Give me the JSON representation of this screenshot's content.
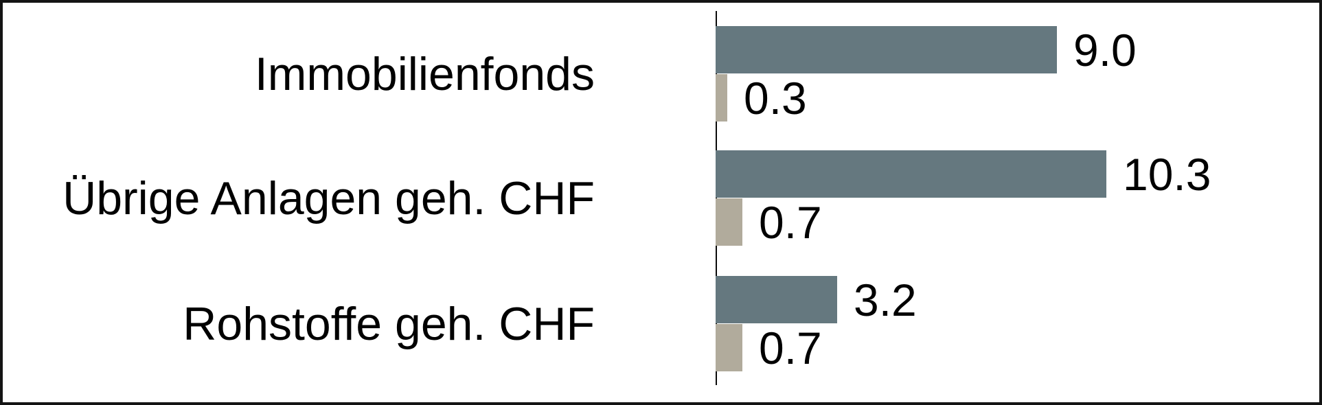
{
  "chart_data": {
    "type": "bar",
    "orientation": "horizontal",
    "title": "",
    "xlabel": "",
    "ylabel": "",
    "legend": "none",
    "grid": false,
    "axis_line": "left-vertical-black",
    "xlim": [
      0,
      16
    ],
    "value_labels_position": "right-of-bar-end",
    "categories": [
      "Immobilienfonds",
      "Übrige Anlagen geh. CHF",
      "Rohstoffe geh. CHF"
    ],
    "series": [
      {
        "name": "series-primary",
        "color": "#65787F",
        "values": [
          9.0,
          10.3,
          3.2
        ],
        "labels": [
          "9.0",
          "10.3",
          "3.2"
        ]
      },
      {
        "name": "series-secondary",
        "color": "#B1AB9C",
        "values": [
          0.3,
          0.7,
          0.7
        ],
        "labels": [
          "0.3",
          "0.7",
          "0.7"
        ]
      }
    ]
  },
  "frame": {
    "background": "#ffffff",
    "border_color": "#141414",
    "axis_color": "#0A0A0A",
    "text_color": "#000000"
  }
}
